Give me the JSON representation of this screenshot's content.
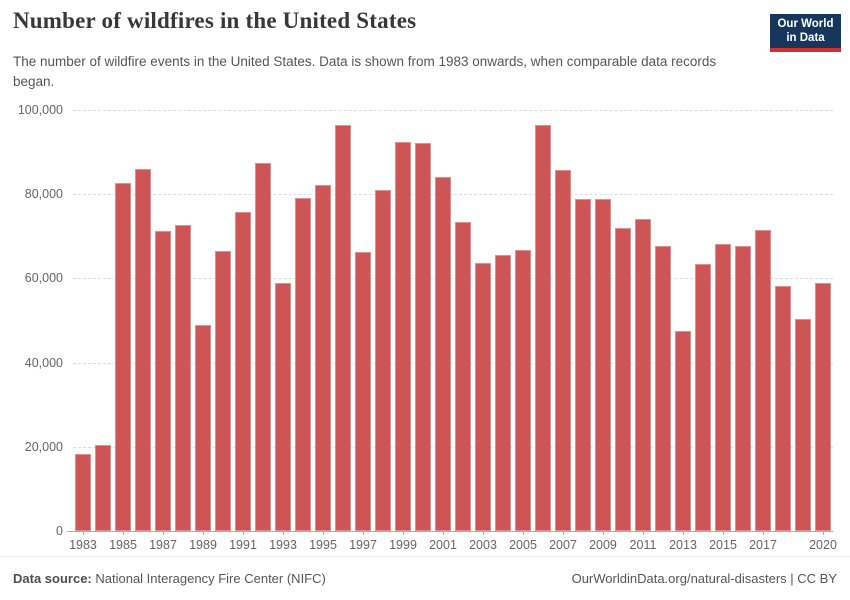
{
  "header": {
    "title": "Number of wildfires in the United States",
    "subtitle": "The number of wildfire events in the United States. Data is shown from 1983 onwards, when comparable data records began.",
    "logo": {
      "line1": "Our World",
      "line2": "in Data"
    }
  },
  "chart_data": {
    "type": "bar",
    "title": "Number of wildfires in the United States",
    "xlabel": "",
    "ylabel": "",
    "categories": [
      1983,
      1984,
      1985,
      1986,
      1987,
      1988,
      1989,
      1990,
      1991,
      1992,
      1993,
      1994,
      1995,
      1996,
      1997,
      1998,
      1999,
      2000,
      2001,
      2002,
      2003,
      2004,
      2005,
      2006,
      2007,
      2008,
      2009,
      2010,
      2011,
      2012,
      2013,
      2014,
      2015,
      2016,
      2017,
      2018,
      2019,
      2020
    ],
    "values": [
      18229,
      20493,
      82591,
      85907,
      71300,
      72750,
      48949,
      66481,
      75754,
      87394,
      58810,
      79107,
      82234,
      96363,
      66196,
      81043,
      92487,
      92250,
      84079,
      73457,
      63629,
      65461,
      66753,
      96385,
      85705,
      78979,
      78792,
      71971,
      74126,
      67774,
      47579,
      63312,
      68151,
      67743,
      71499,
      58083,
      50477,
      58950
    ],
    "ylim": [
      0,
      100000
    ],
    "y_ticks": [
      0,
      20000,
      40000,
      60000,
      80000,
      100000
    ],
    "y_tick_labels": [
      "0",
      "20,000",
      "40,000",
      "60,000",
      "80,000",
      "100,000"
    ],
    "x_tick_labels": [
      "1983",
      "1985",
      "1987",
      "1989",
      "1991",
      "1993",
      "1995",
      "1997",
      "1999",
      "2001",
      "2003",
      "2005",
      "2007",
      "2009",
      "2011",
      "2013",
      "2015",
      "2017",
      "2020"
    ],
    "grid": true,
    "legend": false,
    "bar_color": "#cd5555"
  },
  "footer": {
    "source_label": "Data source:",
    "source_text": " National Interagency Fire Center (NIFC)",
    "credit": "OurWorldinData.org/natural-disasters | CC BY"
  },
  "colors": {
    "bar": "#cd5555",
    "logo_navy": "#16365c",
    "logo_red": "#cd3235",
    "title_text": "#383838",
    "body_text": "#565656",
    "axis_text": "#666666",
    "gridline": "#dcdcdc"
  }
}
